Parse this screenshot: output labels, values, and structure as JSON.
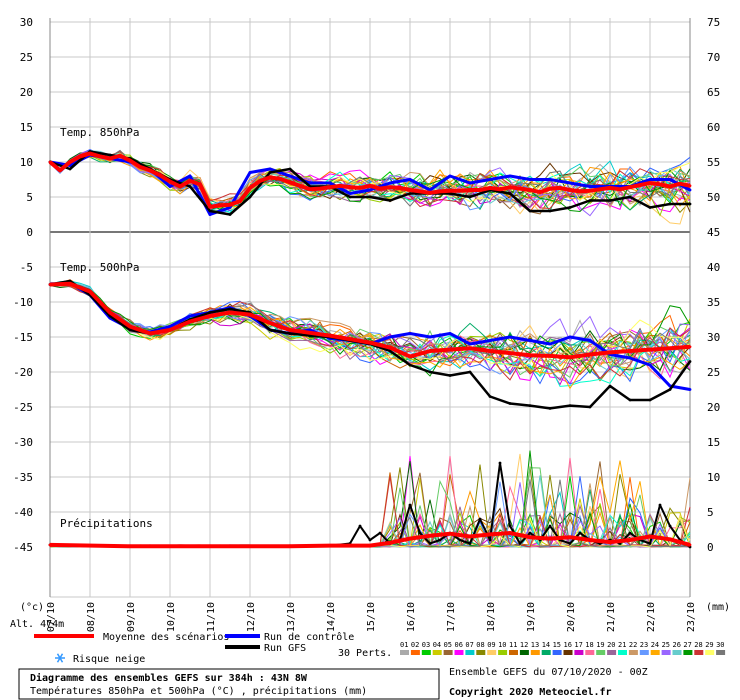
{
  "chart_data": {
    "type": "line",
    "panels": [
      {
        "title": "Temp. 850hPa",
        "unit": "°C"
      },
      {
        "title": "Temp. 500hPa",
        "unit": "°C"
      },
      {
        "title": "Précipitations",
        "unit": "mm"
      }
    ],
    "x_labels": [
      "07/10",
      "08/10",
      "09/10",
      "10/10",
      "11/10",
      "12/10",
      "13/10",
      "14/10",
      "15/10",
      "16/10",
      "17/10",
      "18/10",
      "19/10",
      "20/10",
      "21/10",
      "22/10",
      "23/10"
    ],
    "x_range_hours": [
      0,
      384
    ],
    "y_left_ticks": [
      30,
      25,
      20,
      15,
      10,
      5,
      0,
      -5,
      -10,
      -15,
      -20,
      -25,
      -30,
      -35,
      -40,
      -45
    ],
    "y_right_ticks": [
      75,
      70,
      65,
      60,
      55,
      50,
      45,
      40,
      35,
      30,
      25,
      20,
      15,
      10,
      5,
      0
    ],
    "y_left_unit": "(°c)",
    "y_right_unit": "(mm)",
    "altitude": "Alt. 474m",
    "series": [
      {
        "name": "Moyenne des scénarios",
        "color": "#ff0000",
        "t850_hours": [
          0,
          6,
          12,
          18,
          24,
          30,
          36,
          42,
          48,
          54,
          60,
          66,
          72,
          78,
          84,
          90,
          96,
          102,
          108,
          114,
          120,
          126,
          132,
          138,
          144,
          150,
          156,
          162,
          168,
          174,
          180,
          186,
          192,
          198,
          204,
          210,
          216,
          222,
          228,
          234,
          240,
          246,
          252,
          258,
          264,
          270,
          276,
          282,
          288,
          294,
          300,
          306,
          312,
          318,
          324,
          330,
          336,
          342,
          348,
          354,
          360,
          366,
          372,
          378,
          384
        ],
        "t850": [
          10,
          8.8,
          10,
          10.8,
          11.2,
          10.8,
          10.5,
          10.9,
          10.2,
          9.3,
          8.8,
          8.1,
          7.2,
          6.5,
          7.3,
          6.8,
          3.6,
          3.8,
          3.9,
          4.4,
          6.3,
          7.3,
          7.8,
          7.6,
          7.1,
          6.6,
          6.1,
          6.2,
          6.4,
          6.6,
          6.4,
          6.3,
          6.6,
          6.2,
          6.4,
          6.3,
          6.0,
          5.8,
          5.6,
          5.8,
          5.9,
          5.9,
          6.0,
          6.0,
          6.3,
          6.1,
          6.4,
          6.2,
          6.0,
          5.7,
          6.2,
          6.3,
          6.0,
          5.8,
          5.9,
          6.1,
          6.3,
          6.1,
          6.4,
          6.7,
          7.0,
          6.8,
          6.5,
          6.9,
          6.6
        ],
        "t500_hours": [
          0,
          12,
          24,
          36,
          48,
          60,
          72,
          84,
          96,
          108,
          120,
          132,
          144,
          156,
          168,
          180,
          192,
          204,
          216,
          228,
          240,
          252,
          264,
          276,
          288,
          300,
          312,
          324,
          336,
          348,
          360,
          372,
          384
        ],
        "t500": [
          -7.5,
          -7.4,
          -8.5,
          -11.5,
          -13.5,
          -14.5,
          -14.0,
          -12.8,
          -12.0,
          -11.5,
          -11.8,
          -13.0,
          -14.0,
          -14.4,
          -14.8,
          -15.3,
          -15.8,
          -16.5,
          -17.8,
          -17.0,
          -16.8,
          -16.6,
          -17.0,
          -17.3,
          -17.6,
          -17.7,
          -17.9,
          -17.5,
          -17.2,
          -17.0,
          -16.8,
          -16.6,
          -16.4
        ],
        "precip_hours": [
          0,
          48,
          96,
          144,
          168,
          192,
          204,
          216,
          228,
          240,
          252,
          264,
          276,
          288,
          300,
          312,
          324,
          336,
          348,
          360,
          372,
          384
        ],
        "precip": [
          0.3,
          0.1,
          0.1,
          0.1,
          0.2,
          0.2,
          0.6,
          1.2,
          1.6,
          1.9,
          1.5,
          1.8,
          2.0,
          1.4,
          1.2,
          1.4,
          1.0,
          0.7,
          1.0,
          1.5,
          1.1,
          0.3
        ]
      },
      {
        "name": "Run de contrôle",
        "color": "#0000ff",
        "t850_hours": [
          0,
          12,
          24,
          36,
          48,
          60,
          72,
          84,
          96,
          108,
          120,
          132,
          144,
          156,
          168,
          180,
          192,
          204,
          216,
          228,
          240,
          252,
          264,
          276,
          288,
          300,
          312,
          324,
          336,
          348,
          360,
          372,
          384
        ],
        "t850": [
          10,
          9.5,
          11,
          10.5,
          10,
          9,
          6.5,
          8,
          2.5,
          3.5,
          8.5,
          9,
          8,
          7,
          7,
          5.5,
          6,
          7,
          7.5,
          6,
          8,
          7,
          7.5,
          8,
          7.5,
          7.5,
          7,
          6.5,
          6.5,
          6.5,
          7.5,
          7.5,
          6
        ],
        "t500_hours": [
          0,
          12,
          24,
          36,
          48,
          60,
          72,
          84,
          96,
          108,
          120,
          132,
          144,
          156,
          168,
          180,
          192,
          204,
          216,
          228,
          240,
          252,
          264,
          276,
          288,
          300,
          312,
          324,
          336,
          348,
          360,
          372,
          384
        ],
        "t500": [
          -7.5,
          -7.3,
          -9,
          -12.3,
          -13.8,
          -14.3,
          -13.5,
          -12,
          -11.5,
          -10.8,
          -12,
          -14,
          -14.5,
          -14,
          -15.2,
          -15.5,
          -16,
          -15,
          -14.5,
          -15,
          -14.5,
          -16,
          -15.5,
          -15,
          -15.5,
          -16,
          -15,
          -15.5,
          -17.5,
          -18,
          -19,
          -22,
          -22.5
        ]
      },
      {
        "name": "Run GFS",
        "color": "#000000",
        "t850_hours": [
          0,
          12,
          24,
          36,
          48,
          60,
          72,
          84,
          96,
          108,
          120,
          132,
          144,
          156,
          168,
          180,
          192,
          204,
          216,
          228,
          240,
          252,
          264,
          276,
          288,
          300,
          312,
          324,
          336,
          348,
          360,
          372,
          384
        ],
        "t850": [
          10,
          9,
          11.5,
          11,
          10.5,
          9,
          7.5,
          6.5,
          3,
          2.5,
          5,
          8.5,
          9,
          6.5,
          6.5,
          5,
          5,
          4.5,
          5.5,
          5.5,
          5.5,
          5,
          6,
          5.5,
          3,
          3,
          3.5,
          4.5,
          4.5,
          5,
          3.5,
          4,
          4
        ],
        "t500_hours": [
          0,
          12,
          24,
          36,
          48,
          60,
          72,
          84,
          96,
          108,
          120,
          132,
          144,
          156,
          168,
          180,
          192,
          204,
          216,
          228,
          240,
          252,
          264,
          276,
          288,
          300,
          312,
          324,
          336,
          348,
          360,
          372,
          384
        ],
        "t500": [
          -7.5,
          -7,
          -9,
          -12,
          -14,
          -14.5,
          -14,
          -12.5,
          -11.5,
          -11,
          -11.5,
          -14,
          -14.5,
          -14.8,
          -15,
          -15.5,
          -16,
          -17,
          -19,
          -20,
          -20.5,
          -20,
          -23.5,
          -24.5,
          -24.8,
          -25.2,
          -24.8,
          -25,
          -22,
          -24,
          -24,
          -22.5,
          -18.5
        ],
        "precip_hours": [
          0,
          84,
          120,
          144,
          168,
          180,
          186,
          192,
          198,
          204,
          210,
          216,
          222,
          228,
          234,
          240,
          246,
          252,
          258,
          264,
          270,
          276,
          282,
          288,
          294,
          300,
          306,
          312,
          318,
          324,
          330,
          336,
          342,
          348,
          354,
          360,
          366,
          372,
          378,
          384
        ],
        "precip": [
          0.3,
          0.1,
          0.1,
          0.1,
          0.2,
          0.5,
          3,
          1,
          2,
          0.5,
          1,
          6,
          2,
          0.5,
          1,
          2,
          1,
          0.5,
          4,
          1,
          12,
          3,
          0.5,
          2,
          1,
          3,
          1,
          0.5,
          2,
          1,
          0.5,
          1,
          0.5,
          2,
          1,
          0.5,
          6,
          3,
          1,
          0
        ]
      }
    ],
    "perturbation_colors": [
      "#aaaaaa",
      "#ff6600",
      "#00cc00",
      "#cccc00",
      "#996633",
      "#ff00ff",
      "#00cccc",
      "#888800",
      "#ffcc66",
      "#99cc00",
      "#cc6600",
      "#006600",
      "#ff9900",
      "#00aa66",
      "#3366ff",
      "#663300",
      "#cc00cc",
      "#ff6699",
      "#66cc66",
      "#996699",
      "#00ffcc",
      "#cc9966",
      "#6699ff",
      "#ffaa00",
      "#9966ff",
      "#66cccc",
      "#009900",
      "#cc3333",
      "#ffff66",
      "#777777"
    ],
    "perturbation_count_label": "30 Perts.",
    "perturbation_numbers": [
      "01",
      "02",
      "03",
      "04",
      "05",
      "06",
      "07",
      "08",
      "09",
      "10",
      "11",
      "12",
      "13",
      "14",
      "15",
      "16",
      "17",
      "18",
      "19",
      "20",
      "21",
      "22",
      "23",
      "24",
      "25",
      "26",
      "27",
      "28",
      "29",
      "30"
    ]
  },
  "legend": {
    "mean": "Moyenne des scénarios",
    "control": "Run de contrôle",
    "gfs": "Run GFS",
    "snow_risk": "Risque neige",
    "perts": "30 Perts."
  },
  "footer": {
    "title": "Diagramme des ensembles GEFS sur 384h : 43N 8W",
    "subtitle": "Températures 850hPa et 500hPa (°C) , précipitations (mm)",
    "run": "Ensemble GEFS du 07/10/2020 - 00Z",
    "copyright": "Copyright 2020 Meteociel.fr"
  }
}
